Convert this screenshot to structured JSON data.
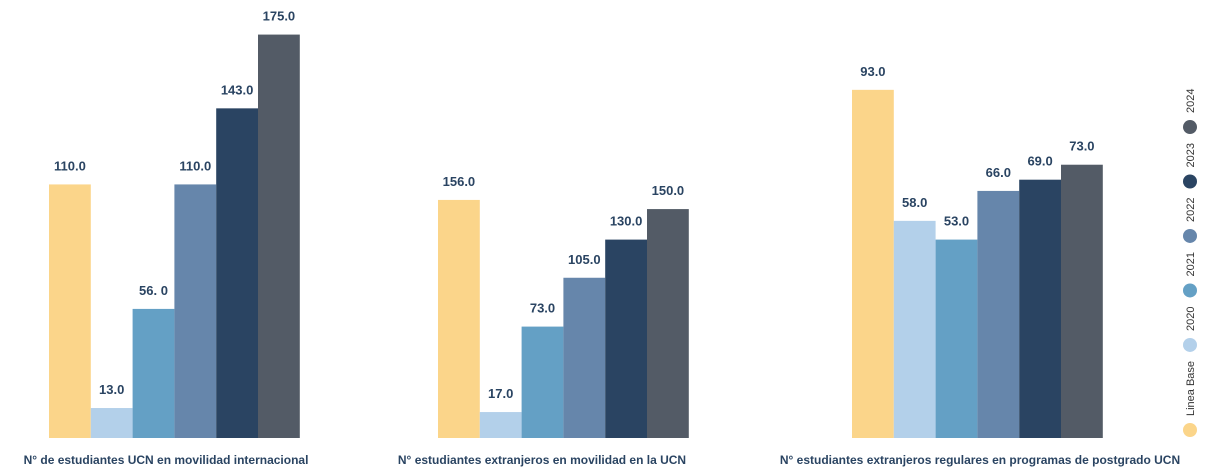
{
  "legend": {
    "items": [
      {
        "name": "Linea Base",
        "color": "#fbd58a"
      },
      {
        "name": "2020",
        "color": "#b3d0ea"
      },
      {
        "name": "2021",
        "color": "#64a0c5"
      },
      {
        "name": "2022",
        "color": "#6686ab"
      },
      {
        "name": "2023",
        "color": "#2a4462"
      },
      {
        "name": "2024",
        "color": "#535b66"
      }
    ]
  },
  "chart_data": [
    {
      "type": "bar",
      "title": "N° de estudiantes UCN en movilidad internacional",
      "values": [
        110,
        13,
        56,
        110,
        143,
        175
      ],
      "value_labels": [
        "110.0",
        "13.0",
        "56. 0",
        "110.0",
        "143.0",
        "175.0"
      ],
      "ylim": [
        0,
        190
      ]
    },
    {
      "type": "bar",
      "title": "N° estudiantes extranjeros en movilidad en la UCN",
      "values": [
        156,
        17,
        73,
        105,
        130,
        150
      ],
      "value_labels": [
        "156.0",
        "17.0",
        "73.0",
        "105.0",
        "130.0",
        "150.0"
      ],
      "ylim": [
        0,
        287
      ]
    },
    {
      "type": "bar",
      "title": "N° estudiantes extranjeros regulares en programas de postgrado UCN",
      "values": [
        93,
        58,
        53,
        66,
        69,
        73
      ],
      "value_labels": [
        "93.0",
        "58.0",
        "53.0",
        "66.0",
        "69.0",
        "73.0"
      ],
      "ylim": [
        0,
        117
      ]
    }
  ]
}
